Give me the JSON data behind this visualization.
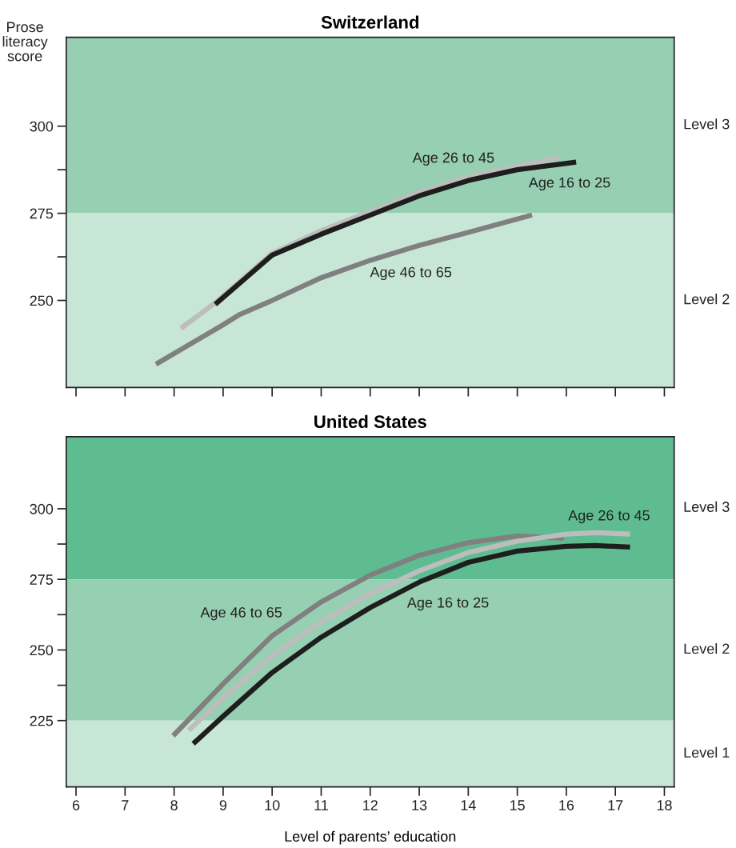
{
  "chart_data": [
    {
      "type": "line",
      "title": "Switzerland",
      "ylabel": "Prose literacy score",
      "xlim": [
        5.8,
        18.2
      ],
      "xticks": [
        {
          "value": 6,
          "label": null
        },
        {
          "value": 7,
          "label": null
        },
        {
          "value": 8,
          "label": null
        },
        {
          "value": 9,
          "label": null
        },
        {
          "value": 10,
          "label": null
        },
        {
          "value": 11,
          "label": null
        },
        {
          "value": 12,
          "label": null
        },
        {
          "value": 13,
          "label": null
        },
        {
          "value": 14,
          "label": null
        },
        {
          "value": 15,
          "label": null
        },
        {
          "value": 16,
          "label": null
        },
        {
          "value": 17,
          "label": null
        },
        {
          "value": 18,
          "label": null
        }
      ],
      "ylim": [
        225,
        325.5
      ],
      "yticks": [
        250,
        {
          "value": 262.5,
          "label": null
        },
        275,
        {
          "value": 287.5,
          "label": null
        },
        300
      ],
      "tick_labels": "y",
      "line_style": "solid",
      "marker": "none",
      "bands": [
        {
          "axis": "y",
          "from": 275,
          "to": 325.5,
          "label": "Level 3",
          "color": "#96cfb1"
        },
        {
          "axis": "y",
          "from": 225,
          "to": 275,
          "label": "Level 2",
          "color": "#c8e6d5"
        }
      ],
      "series": [
        {
          "name": "Age 26 to 45",
          "color": "#bdbdbd",
          "x": [
            8.14,
            8.84,
            10,
            11,
            12,
            13,
            14,
            15,
            15.84
          ],
          "values": [
            242,
            249.3,
            263.5,
            270,
            275.5,
            281,
            285.5,
            288.5,
            291
          ]
        },
        {
          "name": "Age 16 to 25",
          "color": "#1e1e1e",
          "x": [
            8.84,
            10,
            11,
            12,
            13,
            14,
            15,
            16.2
          ],
          "values": [
            248.9,
            263,
            269,
            274.5,
            280,
            284.4,
            287.5,
            289.7
          ]
        },
        {
          "name": "Age 46 to 65",
          "color": "#808080",
          "x": [
            7.63,
            9,
            9.33,
            10,
            11,
            12,
            13,
            14,
            15.3
          ],
          "values": [
            231.7,
            243,
            245.9,
            250,
            256.5,
            261.5,
            265.8,
            269.5,
            274.5
          ]
        }
      ]
    },
    {
      "type": "line",
      "title": "United States",
      "xlabel": "Level of parents’ education",
      "xlim": [
        5.8,
        18.2
      ],
      "xticks": [
        6,
        7,
        8,
        9,
        10,
        11,
        12,
        13,
        14,
        15,
        16,
        17,
        18
      ],
      "ylim": [
        201.5,
        325.5
      ],
      "yticks": [
        225,
        {
          "value": 237.5,
          "label": null
        },
        250,
        {
          "value": 262.5,
          "label": null
        },
        275,
        {
          "value": 287.5,
          "label": null
        },
        300
      ],
      "line_style": "solid",
      "marker": "none",
      "bands": [
        {
          "axis": "y",
          "from": 275,
          "to": 325.5,
          "label": "Level 3",
          "color": "#5fbc90"
        },
        {
          "axis": "y",
          "from": 225,
          "to": 275,
          "label": "Level 2",
          "color": "#96cfb1"
        },
        {
          "axis": "y",
          "from": 201.5,
          "to": 225,
          "label": "Level 1",
          "color": "#c8e6d5"
        }
      ],
      "series": [
        {
          "name": "Age 46 to 65",
          "color": "#808080",
          "x": [
            7.98,
            9,
            10,
            11,
            12,
            13,
            14,
            15,
            15.95
          ],
          "values": [
            219.6,
            238,
            255,
            267,
            276.5,
            283.5,
            288,
            290.4,
            289.5
          ]
        },
        {
          "name": "Age 26 to 45",
          "color": "#bdbdbd",
          "x": [
            8.3,
            9,
            10,
            11,
            12,
            13,
            14,
            15,
            16,
            16.6,
            17.3
          ],
          "values": [
            221.6,
            233,
            248,
            260,
            270,
            278,
            284.5,
            288.5,
            291,
            291.5,
            291
          ]
        },
        {
          "name": "Age 16 to 25",
          "color": "#1e1e1e",
          "x": [
            8.39,
            9,
            10,
            11,
            12,
            13,
            14,
            15,
            16,
            16.6,
            17.3
          ],
          "values": [
            216.8,
            226.5,
            242,
            254.5,
            265,
            274,
            281,
            285,
            286.7,
            287,
            286.4
          ]
        }
      ]
    }
  ]
}
